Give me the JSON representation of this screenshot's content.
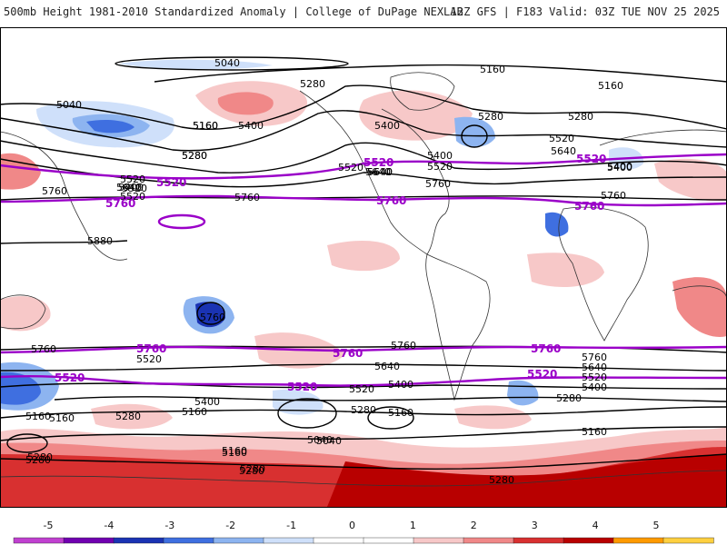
{
  "header": {
    "left": "500mb Height 1981-2010 Standardized Anomaly | College of DuPage NEXLAB",
    "right": "12Z GFS | F183 Valid: 03Z TUE NOV 25 2025"
  },
  "map": {
    "black_contour_labels": [
      "5040",
      "5160",
      "5160",
      "5280",
      "5280",
      "5280",
      "5400",
      "5400",
      "5400",
      "5520",
      "5520",
      "5520",
      "5640",
      "5640",
      "5640",
      "5760",
      "5760",
      "5760",
      "5880",
      "5760",
      "5760",
      "5520",
      "5640",
      "5400",
      "5280",
      "5160",
      "5520",
      "5400",
      "5280",
      "5160",
      "5040",
      "5160",
      "5280",
      "5160",
      "5280",
      "5280",
      "5160",
      "5040",
      "5400",
      "5280",
      "5160",
      "5280",
      "5400",
      "5520",
      "5640",
      "5760",
      "5760",
      "5520",
      "5400",
      "5280",
      "5160",
      "5040",
      "5160",
      "5280",
      "5160",
      "5280",
      "5520",
      "5640",
      "5760",
      "5400",
      "5520",
      "5640"
    ],
    "purple_5520_label": "5520",
    "purple_5760_label": "5760"
  },
  "colorbar": {
    "ticks": [
      "-5",
      "-4",
      "-3",
      "-2",
      "-1",
      "0",
      "1",
      "2",
      "3",
      "4",
      "5"
    ],
    "colors": [
      "#c040d0",
      "#7000b0",
      "#1a33b3",
      "#3f6fe0",
      "#8db4f0",
      "#cfe0fa",
      "#ffffff",
      "#ffffff",
      "#f7c8c8",
      "#f08888",
      "#d83030",
      "#b80000",
      "#ff9a00",
      "#ffd040"
    ]
  }
}
